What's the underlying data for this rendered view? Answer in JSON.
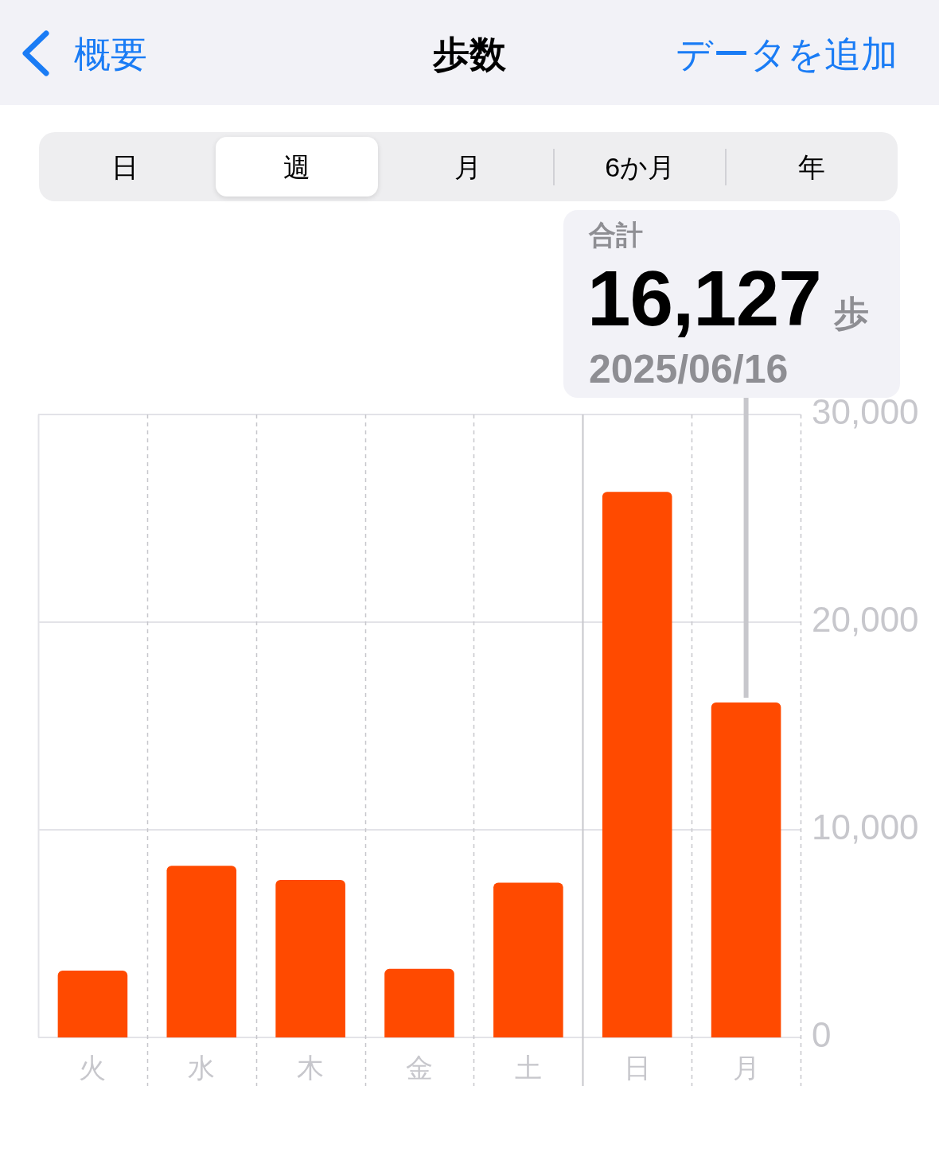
{
  "chart_data": {
    "type": "bar",
    "title": "歩数",
    "categories": [
      "火",
      "水",
      "木",
      "金",
      "土",
      "日",
      "月"
    ],
    "values": [
      3220,
      8270,
      7590,
      3300,
      7450,
      26270,
      16127
    ],
    "color": "#ff4a00",
    "ylim": [
      0,
      30000
    ],
    "yticks": [
      0,
      {
        "value": 10000,
        "label": "10,000"
      },
      {
        "value": 20000,
        "label": "20,000"
      },
      {
        "value": 30000,
        "label": "30,000"
      }
    ],
    "grid": true,
    "ref_lines": [
      {
        "axis": "x",
        "value": "日",
        "color": "#c7c7cc",
        "line_style": "solid"
      }
    ],
    "annotations": [
      "概要",
      "データを追加",
      "日",
      "週",
      "月",
      "6か月",
      "年",
      "合計",
      {
        "text": "16,127",
        "x": "月",
        "y": 16127
      },
      "歩",
      "2025/06/16"
    ]
  }
}
